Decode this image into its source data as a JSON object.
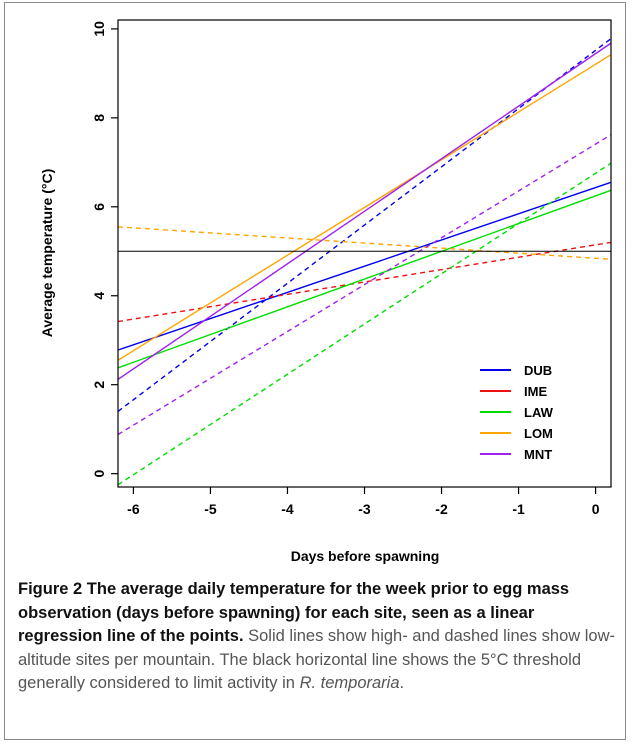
{
  "chart_data": {
    "type": "line",
    "xlabel": "Days before spawning",
    "ylabel": "Average temperature (°C)",
    "xlim": [
      -6.2,
      0.2
    ],
    "ylim": [
      -0.3,
      10.2
    ],
    "x_ticks": [
      "-6",
      "-5",
      "-4",
      "-3",
      "-2",
      "-1",
      "0"
    ],
    "y_ticks": [
      "0",
      "2",
      "4",
      "6",
      "8",
      "10"
    ],
    "grid": false,
    "legend_position": "bottom-right",
    "threshold": {
      "y": 5,
      "color": "#000000"
    },
    "series": [
      {
        "name": "DUB",
        "color": "#0000ee",
        "altitude": "high",
        "x": [
          -6.2,
          0.2
        ],
        "y": [
          2.78,
          6.55
        ]
      },
      {
        "name": "DUB",
        "color": "#0000ee",
        "altitude": "low",
        "x": [
          -6.2,
          0.2
        ],
        "y": [
          1.4,
          9.78
        ]
      },
      {
        "name": "IME",
        "color": "#ee1111",
        "altitude": "low",
        "x": [
          -6.2,
          0.2
        ],
        "y": [
          3.42,
          5.2
        ]
      },
      {
        "name": "LAW",
        "color": "#00dd00",
        "altitude": "high",
        "x": [
          -6.2,
          0.2
        ],
        "y": [
          2.38,
          6.37
        ]
      },
      {
        "name": "LAW",
        "color": "#00dd00",
        "altitude": "low",
        "x": [
          -6.2,
          0.2
        ],
        "y": [
          -0.25,
          6.98
        ]
      },
      {
        "name": "LOM",
        "color": "#ffa500",
        "altitude": "high",
        "x": [
          -6.2,
          0.2
        ],
        "y": [
          2.55,
          9.42
        ]
      },
      {
        "name": "LOM",
        "color": "#ffa500",
        "altitude": "low",
        "x": [
          -6.2,
          0.2
        ],
        "y": [
          5.55,
          4.82
        ]
      },
      {
        "name": "MNT",
        "color": "#a020f0",
        "altitude": "high",
        "x": [
          -6.2,
          0.2
        ],
        "y": [
          2.12,
          9.68
        ]
      },
      {
        "name": "MNT",
        "color": "#a020f0",
        "altitude": "low",
        "x": [
          -6.2,
          0.2
        ],
        "y": [
          0.88,
          7.62
        ]
      }
    ],
    "legend": [
      {
        "label": "DUB",
        "color": "#0000ee"
      },
      {
        "label": "IME",
        "color": "#ee1111"
      },
      {
        "label": "LAW",
        "color": "#00dd00"
      },
      {
        "label": "LOM",
        "color": "#ffa500"
      },
      {
        "label": "MNT",
        "color": "#a020f0"
      }
    ]
  },
  "caption": {
    "label": "Figure 2",
    "title": "The average daily temperature for the week prior to egg mass observation (days before spawning) for each site, seen as a linear regression line of the points.",
    "body": "Solid lines show high- and dashed lines show low-altitude sites per mountain. The black horizontal line shows the 5°C threshold generally considered to limit activity in",
    "species": "R. temporaria",
    "end": "."
  }
}
